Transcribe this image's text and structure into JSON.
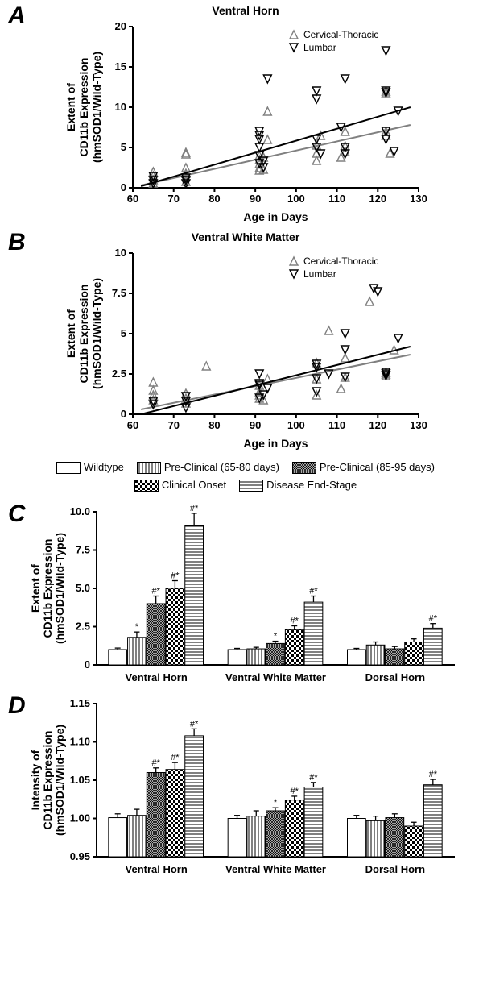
{
  "panelA": {
    "label": "A",
    "title": "Ventral Horn",
    "type": "scatter",
    "xlabel": "Age in Days",
    "ylabel": "Extent of\nCD11b Expression\n(hmSOD1/Wild-Type)",
    "xlim": [
      60,
      130
    ],
    "xticks": [
      60,
      70,
      80,
      90,
      100,
      110,
      120,
      130
    ],
    "ylim": [
      0,
      20
    ],
    "yticks": [
      0,
      5,
      10,
      15,
      20
    ],
    "series": [
      {
        "name": "Cervical-Thoracic",
        "marker": "tri-up",
        "color": "#808080",
        "data": [
          [
            65,
            0.6
          ],
          [
            65,
            1.0
          ],
          [
            65,
            1.5
          ],
          [
            65,
            2.0
          ],
          [
            73,
            4.2
          ],
          [
            73,
            4.4
          ],
          [
            73,
            2.5
          ],
          [
            73,
            1.8
          ],
          [
            73,
            0.8
          ],
          [
            91,
            3.0
          ],
          [
            91,
            2.5
          ],
          [
            91,
            2.2
          ],
          [
            91,
            3.5
          ],
          [
            91,
            4.0
          ],
          [
            93,
            9.5
          ],
          [
            92,
            2.3
          ],
          [
            92,
            3.8
          ],
          [
            93,
            6.0
          ],
          [
            105,
            4.3
          ],
          [
            105,
            5.3
          ],
          [
            105,
            3.4
          ],
          [
            106,
            6.5
          ],
          [
            112,
            7.0
          ],
          [
            112,
            4.5
          ],
          [
            112,
            5.2
          ],
          [
            111,
            3.8
          ],
          [
            122,
            11.8
          ],
          [
            122,
            12.0
          ],
          [
            122,
            6.5
          ],
          [
            122,
            7.0
          ],
          [
            123,
            4.3
          ]
        ],
        "fit": {
          "x1": 62,
          "y1": 0.3,
          "x2": 128,
          "y2": 7.8
        }
      },
      {
        "name": "Lumbar",
        "marker": "tri-down",
        "color": "#000000",
        "data": [
          [
            65,
            0.5
          ],
          [
            65,
            0.9
          ],
          [
            65,
            1.4
          ],
          [
            73,
            0.5
          ],
          [
            73,
            0.9
          ],
          [
            73,
            1.2
          ],
          [
            91,
            3.0
          ],
          [
            91,
            4.0
          ],
          [
            91,
            5.0
          ],
          [
            91,
            6.0
          ],
          [
            91,
            6.5
          ],
          [
            91,
            7.0
          ],
          [
            92,
            2.5
          ],
          [
            92,
            3.3
          ],
          [
            93,
            13.5
          ],
          [
            105,
            11.0
          ],
          [
            105,
            12.0
          ],
          [
            105,
            6.0
          ],
          [
            105,
            5.0
          ],
          [
            106,
            4.2
          ],
          [
            111,
            7.5
          ],
          [
            112,
            13.5
          ],
          [
            112,
            5.0
          ],
          [
            112,
            4.2
          ],
          [
            122,
            17.0
          ],
          [
            122,
            12.0
          ],
          [
            122,
            11.8
          ],
          [
            122,
            7.0
          ],
          [
            122,
            6.0
          ],
          [
            125,
            9.5
          ],
          [
            124,
            4.5
          ]
        ],
        "fit": {
          "x1": 62,
          "y1": 0.2,
          "x2": 128,
          "y2": 10.0
        }
      }
    ]
  },
  "panelB": {
    "label": "B",
    "title": "Ventral White Matter",
    "type": "scatter",
    "xlabel": "Age in Days",
    "ylabel": "Extent of\nCD11b Expression\n(hmSOD1/Wild-Type)",
    "xlim": [
      60,
      130
    ],
    "xticks": [
      60,
      70,
      80,
      90,
      100,
      110,
      120,
      130
    ],
    "ylim": [
      0,
      10
    ],
    "yticks": [
      0,
      2.5,
      5.0,
      7.5,
      10.0
    ],
    "series": [
      {
        "name": "Cervical-Thoracic",
        "marker": "tri-up",
        "color": "#808080",
        "data": [
          [
            65,
            0.9
          ],
          [
            65,
            1.2
          ],
          [
            65,
            1.5
          ],
          [
            65,
            2.0
          ],
          [
            73,
            1.0
          ],
          [
            73,
            1.3
          ],
          [
            73,
            0.7
          ],
          [
            78,
            3.0
          ],
          [
            91,
            1.0
          ],
          [
            91,
            1.4
          ],
          [
            91,
            1.8
          ],
          [
            91,
            1.2
          ],
          [
            92,
            0.9
          ],
          [
            93,
            2.2
          ],
          [
            105,
            1.2
          ],
          [
            105,
            2.2
          ],
          [
            105,
            3.2
          ],
          [
            108,
            5.2
          ],
          [
            112,
            3.5
          ],
          [
            112,
            2.3
          ],
          [
            111,
            1.6
          ],
          [
            118,
            7.0
          ],
          [
            122,
            2.5
          ],
          [
            122,
            2.6
          ],
          [
            122,
            2.4
          ],
          [
            124,
            4.0
          ]
        ],
        "fit": {
          "x1": 62,
          "y1": 0.3,
          "x2": 128,
          "y2": 3.7
        }
      },
      {
        "name": "Lumbar",
        "marker": "tri-down",
        "color": "#000000",
        "data": [
          [
            65,
            0.6
          ],
          [
            65,
            0.8
          ],
          [
            73,
            0.4
          ],
          [
            73,
            0.8
          ],
          [
            73,
            1.1
          ],
          [
            91,
            1.8
          ],
          [
            91,
            1.9
          ],
          [
            91,
            1.0
          ],
          [
            91,
            2.5
          ],
          [
            92,
            1.2
          ],
          [
            93,
            1.6
          ],
          [
            105,
            2.9
          ],
          [
            105,
            3.1
          ],
          [
            105,
            1.4
          ],
          [
            105,
            2.2
          ],
          [
            108,
            2.5
          ],
          [
            112,
            5.0
          ],
          [
            112,
            4.0
          ],
          [
            112,
            2.3
          ],
          [
            119,
            7.8
          ],
          [
            120,
            7.6
          ],
          [
            122,
            2.5
          ],
          [
            122,
            2.6
          ],
          [
            122,
            2.4
          ],
          [
            125,
            4.7
          ]
        ],
        "fit": {
          "x1": 62,
          "y1": 0.0,
          "x2": 128,
          "y2": 4.2
        }
      }
    ]
  },
  "legend": {
    "items": [
      {
        "label": "Wildtype",
        "pattern": "none"
      },
      {
        "label": "Pre-Clinical (65-80 days)",
        "pattern": "vlines"
      },
      {
        "label": "Pre-Clinical (85-95 days)",
        "pattern": "dense-cross"
      },
      {
        "label": "Clinical Onset",
        "pattern": "checker"
      },
      {
        "label": "Disease End-Stage",
        "pattern": "hlines"
      }
    ]
  },
  "panelC": {
    "label": "C",
    "type": "bar",
    "ylabel": "Extent of\nCD11b Expression\n(hmSOD1/Wild-Type)",
    "ylim": [
      0,
      10
    ],
    "yticks": [
      0,
      2.5,
      5.0,
      7.5,
      10.0
    ],
    "groups": [
      "Ventral Horn",
      "Ventral White Matter",
      "Dorsal Horn"
    ],
    "bars": [
      [
        {
          "v": 1.0,
          "e": 0.1,
          "s": ""
        },
        {
          "v": 1.8,
          "e": 0.35,
          "s": "*"
        },
        {
          "v": 4.0,
          "e": 0.5,
          "s": "#*"
        },
        {
          "v": 5.0,
          "e": 0.5,
          "s": "#*"
        },
        {
          "v": 9.1,
          "e": 0.8,
          "s": "#*"
        }
      ],
      [
        {
          "v": 1.0,
          "e": 0.08,
          "s": ""
        },
        {
          "v": 1.05,
          "e": 0.1,
          "s": ""
        },
        {
          "v": 1.4,
          "e": 0.15,
          "s": "*"
        },
        {
          "v": 2.3,
          "e": 0.25,
          "s": "#*"
        },
        {
          "v": 4.1,
          "e": 0.4,
          "s": "#*"
        }
      ],
      [
        {
          "v": 1.0,
          "e": 0.08,
          "s": ""
        },
        {
          "v": 1.3,
          "e": 0.2,
          "s": ""
        },
        {
          "v": 1.05,
          "e": 0.15,
          "s": ""
        },
        {
          "v": 1.5,
          "e": 0.2,
          "s": ""
        },
        {
          "v": 2.4,
          "e": 0.3,
          "s": "#*"
        }
      ]
    ]
  },
  "panelD": {
    "label": "D",
    "type": "bar",
    "ylabel": "Intensity of\nCD11b Expression\n(hmSOD1/Wild-Type)",
    "ylim": [
      0.95,
      1.15
    ],
    "yticks": [
      0.95,
      1.0,
      1.05,
      1.1,
      1.15
    ],
    "groups": [
      "Ventral Horn",
      "Ventral White Matter",
      "Dorsal Horn"
    ],
    "bars": [
      [
        {
          "v": 1.001,
          "e": 0.005,
          "s": ""
        },
        {
          "v": 1.004,
          "e": 0.008,
          "s": ""
        },
        {
          "v": 1.06,
          "e": 0.006,
          "s": "#*"
        },
        {
          "v": 1.064,
          "e": 0.009,
          "s": "#*"
        },
        {
          "v": 1.108,
          "e": 0.009,
          "s": "#*"
        }
      ],
      [
        {
          "v": 1.0,
          "e": 0.004,
          "s": ""
        },
        {
          "v": 1.003,
          "e": 0.007,
          "s": ""
        },
        {
          "v": 1.01,
          "e": 0.004,
          "s": "*"
        },
        {
          "v": 1.024,
          "e": 0.005,
          "s": "#*"
        },
        {
          "v": 1.041,
          "e": 0.006,
          "s": "#*"
        }
      ],
      [
        {
          "v": 1.0,
          "e": 0.004,
          "s": ""
        },
        {
          "v": 0.997,
          "e": 0.006,
          "s": ""
        },
        {
          "v": 1.001,
          "e": 0.005,
          "s": ""
        },
        {
          "v": 0.99,
          "e": 0.005,
          "s": ""
        },
        {
          "v": 1.044,
          "e": 0.007,
          "s": "#*"
        }
      ]
    ]
  },
  "patterns": [
    "none",
    "vlines",
    "dense-cross",
    "checker",
    "hlines"
  ],
  "colors": {
    "axis": "#000",
    "ct": "#808080",
    "lum": "#000"
  }
}
